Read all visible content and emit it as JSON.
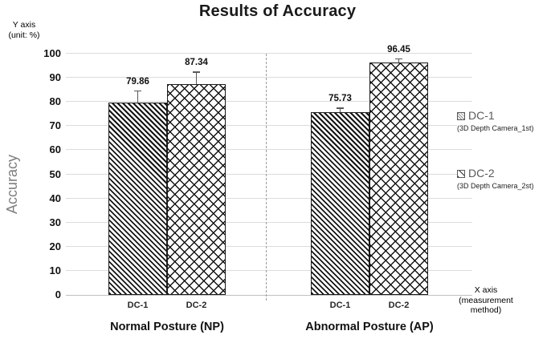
{
  "title": "Results of Accuracy",
  "annotations": {
    "y_note_line1": "Y axis",
    "y_note_line2": "(unit: %)",
    "x_note_line1": "X axis",
    "x_note_line2": "(measurement",
    "x_note_line3": "method)"
  },
  "colors": {
    "bar_hatch": "#141414",
    "bar_outline": "#1a1a1a",
    "gridline": "#dcdcdc",
    "axis_line": "#c0c0c0",
    "ylabel_gray": "#7f7f7f",
    "legend_label_gray": "#595959",
    "text": "#111111"
  },
  "chart_data": {
    "type": "bar",
    "title": "Results of Accuracy",
    "ylabel": "Accuracy",
    "y_axis_unit_note": "Y axis (unit: %)",
    "x_axis_note": "X axis (measurement method)",
    "ylim": [
      0,
      100
    ],
    "ytick_step": 10,
    "grid": true,
    "legend_position": "right",
    "group_divider": "dashed vertical line between groups",
    "groups": [
      "Normal Posture (NP)",
      "Abnormal Posture (AP)"
    ],
    "series": [
      {
        "name": "DC-1",
        "sublabel": "(3D Depth Camera_1st)",
        "pattern": "diagonal-stripes",
        "values": [
          79.86,
          75.73
        ],
        "errors_upper": [
          5.0,
          2.0
        ]
      },
      {
        "name": "DC-2",
        "sublabel": "(3D Depth Camera_2st)",
        "pattern": "diamond-lattice",
        "values": [
          87.34,
          96.45
        ],
        "errors_upper": [
          5.3,
          1.7
        ]
      }
    ]
  }
}
